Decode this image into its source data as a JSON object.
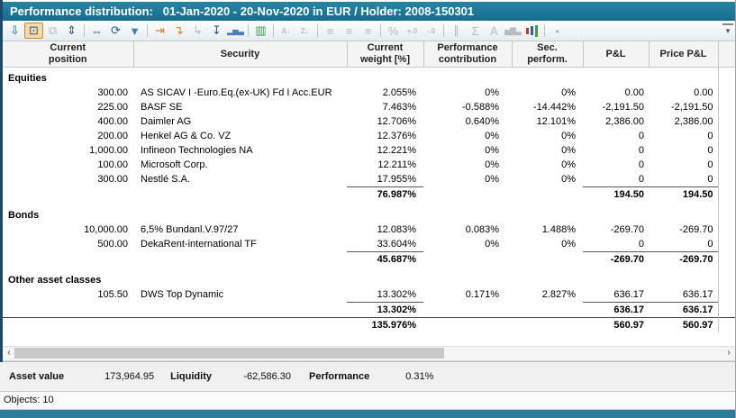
{
  "window": {
    "title": "Performance distribution:   01-Jan-2020 - 20-Nov-2020 in EUR / Holder: 2008-150301"
  },
  "toolbar": {
    "overflow_glyph": "▾",
    "icons": [
      {
        "name": "load-report-icon",
        "glyph": "⇩",
        "color": "#1a7090",
        "state": "normal"
      },
      {
        "name": "fit-view-icon",
        "glyph": "⊡",
        "color": "#2c5a8c",
        "state": "active"
      },
      {
        "name": "copy-view-icon",
        "glyph": "⧉",
        "state": "disabled"
      },
      {
        "name": "fit-height-icon",
        "glyph": "⇕",
        "color": "#2c5a8c",
        "state": "normal"
      },
      {
        "sep": true
      },
      {
        "name": "column-width-icon",
        "glyph": "⇔",
        "color": "#2c5a8c",
        "state": "normal"
      },
      {
        "name": "refresh-icon",
        "glyph": "⟳",
        "color": "#2c5a8c",
        "state": "normal"
      },
      {
        "name": "filter-icon",
        "glyph": "▼",
        "color": "#4a7fb5",
        "state": "normal"
      },
      {
        "sep": true
      },
      {
        "name": "shift-right-icon",
        "glyph": "⇥",
        "color": "#e07b1f",
        "state": "normal"
      },
      {
        "name": "shift-into-icon",
        "glyph": "↴",
        "color": "#e07b1f",
        "state": "normal"
      },
      {
        "name": "return-icon",
        "glyph": "↳",
        "state": "disabled"
      },
      {
        "name": "jump-bottom-icon",
        "glyph": "↧",
        "color": "#2c5a8c",
        "state": "normal"
      },
      {
        "name": "bar-values-icon",
        "glyph": "▂▅▃",
        "color": "#4a7fb5",
        "state": "normal",
        "small": true
      },
      {
        "sep": true
      },
      {
        "name": "hide-columns-icon",
        "glyph": "▥",
        "color": "#3f9b4f",
        "state": "normal"
      },
      {
        "sep": true
      },
      {
        "name": "sort-asc-icon",
        "glyph": "A↓",
        "state": "disabled",
        "small": true
      },
      {
        "name": "sort-desc-icon",
        "glyph": "Z↓",
        "state": "disabled",
        "small": true
      },
      {
        "sep": true
      },
      {
        "name": "align-left-icon",
        "glyph": "≡",
        "state": "disabled"
      },
      {
        "name": "align-center-icon",
        "glyph": "≡",
        "state": "disabled"
      },
      {
        "name": "align-right-icon",
        "glyph": "≡",
        "state": "disabled"
      },
      {
        "sep": true
      },
      {
        "name": "percent-format-icon",
        "glyph": "%",
        "state": "disabled"
      },
      {
        "name": "add-decimal-icon",
        "glyph": "+.0",
        "state": "disabled",
        "small": true
      },
      {
        "name": "remove-decimal-icon",
        "glyph": "-.0",
        "state": "disabled",
        "small": true
      },
      {
        "sep": true
      },
      {
        "name": "merge-cells-icon",
        "glyph": "∥",
        "state": "disabled"
      },
      {
        "name": "sum-icon",
        "glyph": "Σ",
        "state": "disabled"
      },
      {
        "name": "font-icon",
        "glyph": "A",
        "state": "disabled"
      },
      {
        "name": "column-chart-icon",
        "glyph": "▅▇▃",
        "state": "disabled",
        "small": true
      },
      {
        "name": "chart-icon",
        "state": "normal",
        "bars": [
          "#c0392b",
          "#2e5fa3",
          "#3f9b4f"
        ]
      },
      {
        "sep": true
      },
      {
        "name": "stop-icon",
        "glyph": "▪",
        "state": "disabled"
      }
    ]
  },
  "table": {
    "columns": [
      {
        "name": "current-position",
        "lines": [
          "Current",
          "position"
        ]
      },
      {
        "name": "security",
        "lines": [
          "Security"
        ]
      },
      {
        "name": "current-weight",
        "lines": [
          "Current",
          "weight [%]"
        ]
      },
      {
        "name": "performance-contribution",
        "lines": [
          "Performance",
          "contribution"
        ]
      },
      {
        "name": "sec-perform",
        "lines": [
          "Sec.",
          "perform."
        ]
      },
      {
        "name": "pl",
        "lines": [
          "P&L"
        ]
      },
      {
        "name": "price-pl",
        "lines": [
          "Price P&L"
        ]
      },
      {
        "name": "filler",
        "lines": []
      }
    ],
    "sections": [
      {
        "label": "Equities",
        "rows": [
          {
            "position": "300.00",
            "security": "AS SICAV I -Euro.Eq.(ex-UK) Fd I Acc.EUR",
            "weight": "2.055%",
            "contribution": "0%",
            "sec_perform": "0%",
            "pl": "0.00",
            "price_pl": "0.00"
          },
          {
            "position": "225.00",
            "security": "BASF SE",
            "weight": "7.463%",
            "contribution": "-0.588%",
            "sec_perform": "-14.442%",
            "pl": "-2,191.50",
            "price_pl": "-2,191.50"
          },
          {
            "position": "400.00",
            "security": "Daimler AG",
            "weight": "12.706%",
            "contribution": "0.640%",
            "sec_perform": "12.101%",
            "pl": "2,386.00",
            "price_pl": "2,386.00"
          },
          {
            "position": "200.00",
            "security": "Henkel AG & Co. VZ",
            "weight": "12.376%",
            "contribution": "0%",
            "sec_perform": "0%",
            "pl": "0",
            "price_pl": "0"
          },
          {
            "position": "1,000.00",
            "security": "Infineon Technologies NA",
            "weight": "12.221%",
            "contribution": "0%",
            "sec_perform": "0%",
            "pl": "0",
            "price_pl": "0"
          },
          {
            "position": "100.00",
            "security": "Microsoft Corp.",
            "weight": "12.211%",
            "contribution": "0%",
            "sec_perform": "0%",
            "pl": "0",
            "price_pl": "0"
          },
          {
            "position": "300.00",
            "security": "Nestlé S.A.",
            "weight": "17.955%",
            "contribution": "0%",
            "sec_perform": "0%",
            "pl": "0",
            "price_pl": "0"
          }
        ],
        "subtotal": {
          "weight": "76.987%",
          "pl": "194.50",
          "price_pl": "194.50"
        }
      },
      {
        "label": "Bonds",
        "rows": [
          {
            "position": "10,000.00",
            "security": "6,5% Bundanl.V.97/27",
            "weight": "12.083%",
            "contribution": "0.083%",
            "sec_perform": "1.488%",
            "pl": "-269.70",
            "price_pl": "-269.70"
          },
          {
            "position": "500.00",
            "security": "DekaRent-international TF",
            "weight": "33.604%",
            "contribution": "0%",
            "sec_perform": "0%",
            "pl": "0",
            "price_pl": "0"
          }
        ],
        "subtotal": {
          "weight": "45.687%",
          "pl": "-269.70",
          "price_pl": "-269.70"
        }
      },
      {
        "label": "Other asset classes",
        "rows": [
          {
            "position": "105.50",
            "security": "DWS Top Dynamic",
            "weight": "13.302%",
            "contribution": "0.171%",
            "sec_perform": "2.827%",
            "pl": "636.17",
            "price_pl": "636.17"
          }
        ],
        "subtotal": {
          "weight": "13.302%",
          "pl": "636.17",
          "price_pl": "636.17"
        }
      }
    ],
    "total": {
      "weight": "135.976%",
      "pl": "560.97",
      "price_pl": "560.97"
    }
  },
  "scrollbar": {
    "left_glyph": "‹",
    "right_glyph": "›"
  },
  "footer": {
    "items": [
      {
        "label": "Asset value",
        "value": "173,964.95"
      },
      {
        "label": "Liquidity",
        "value": "-62,586.30"
      },
      {
        "label": "Performance",
        "value": "0.31%"
      }
    ]
  },
  "objects_label": "Objects: 10",
  "colors": {
    "titlebar": "#1d7494",
    "accent_orange": "#e07b1f",
    "accent_blue": "#2c5a8c",
    "left_strip": "#1d4a6b",
    "bottom_strip": "#2e7d98"
  }
}
